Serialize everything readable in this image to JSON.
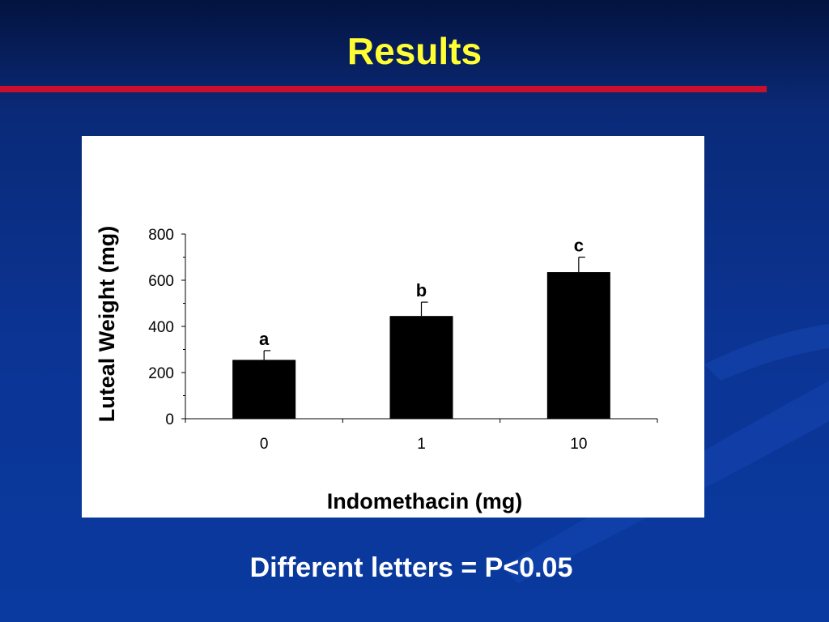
{
  "slide": {
    "title": "Results",
    "footnote": "Different letters = P<0.05",
    "title_color": "#ffff33",
    "rule_color": "#c8102e",
    "background_color": "#0b3494"
  },
  "chart_data": {
    "type": "bar",
    "categories": [
      "0",
      "1",
      "10"
    ],
    "values": [
      255,
      445,
      635
    ],
    "errors": [
      40,
      60,
      65
    ],
    "significance_labels": [
      "a",
      "b",
      "c"
    ],
    "xlabel": "Indomethacin (mg)",
    "ylabel": "Luteal Weight (mg)",
    "ylim": [
      0,
      800
    ],
    "yticks": [
      0,
      200,
      400,
      600,
      800
    ],
    "bar_color": "#000000",
    "grid": false,
    "legend": "none"
  }
}
